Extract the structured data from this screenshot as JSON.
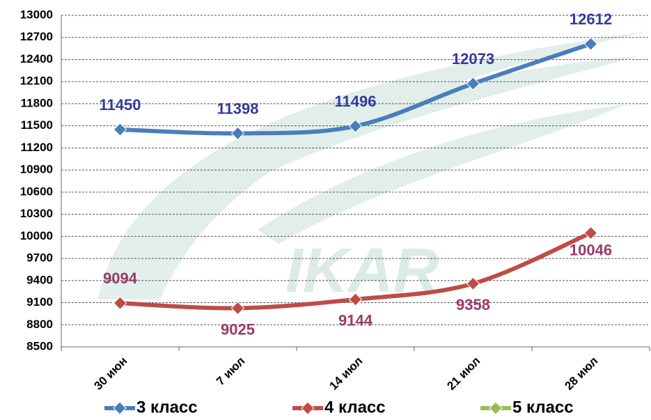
{
  "chart_data": {
    "type": "line",
    "watermark": "IKAR",
    "categories": [
      "30 июн",
      "7 июл",
      "14 июл",
      "21 июл",
      "28 июл"
    ],
    "series": [
      {
        "name": "3 класс",
        "color": "#4a7ebb",
        "label_color": "#343a9c",
        "values": [
          11450,
          11398,
          11496,
          12073,
          12612
        ]
      },
      {
        "name": "4 класс",
        "color": "#be4b48",
        "label_color": "#9b3a6a",
        "values": [
          9094,
          9025,
          9144,
          9358,
          10046
        ]
      },
      {
        "name": "5 класс",
        "color": "#9bbb59",
        "label_color": "#6f8a3a",
        "values": [
          null,
          null,
          null,
          null,
          null
        ]
      }
    ],
    "ylim": [
      8500,
      13000
    ],
    "yticks": [
      8500,
      8800,
      9100,
      9400,
      9700,
      10000,
      10300,
      10600,
      10900,
      11200,
      11500,
      11800,
      12100,
      12400,
      12700,
      13000
    ],
    "grid": true,
    "legend": "bottom",
    "smooth": true
  }
}
